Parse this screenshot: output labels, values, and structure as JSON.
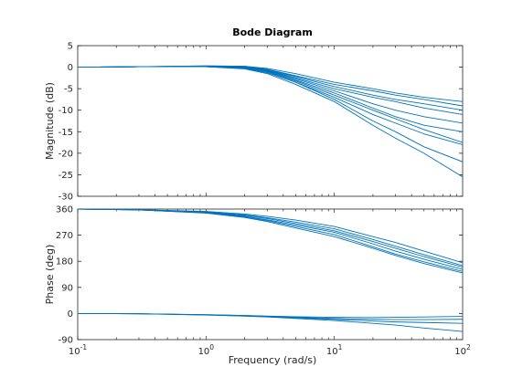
{
  "chart_data": {
    "type": "line",
    "title": "Bode Diagram",
    "xlabel": "Frequency  (rad/s)",
    "xscale": "log",
    "xlim": [
      0.1,
      100
    ],
    "x_ticks": [
      {
        "value": 0.1,
        "base": "10",
        "exp": "-1"
      },
      {
        "value": 1,
        "base": "10",
        "exp": "0"
      },
      {
        "value": 10,
        "base": "10",
        "exp": "1"
      },
      {
        "value": 100,
        "base": "10",
        "exp": "2"
      }
    ],
    "line_color": "#0072BD",
    "grid": false,
    "legend": "none",
    "panels": [
      {
        "name": "magnitude",
        "ylabel": "Magnitude (dB)",
        "ylim": [
          -30,
          5
        ],
        "y_ticks": [
          5,
          0,
          -5,
          -10,
          -15,
          -20,
          -25,
          -30
        ],
        "y_tick_labels": [
          "5",
          "0",
          "-5",
          "-10",
          "-15",
          "-20",
          "-25",
          "-30"
        ],
        "x": [
          0.1,
          0.3,
          1,
          2,
          3,
          5,
          10,
          20,
          30,
          50,
          100
        ],
        "series": [
          {
            "values": [
              0,
              0.1,
              0.3,
              0.2,
              -0.3,
              -1.5,
              -3.5,
              -5,
              -6,
              -7,
              -8
            ]
          },
          {
            "values": [
              0,
              0.1,
              0.3,
              0.2,
              -0.5,
              -2,
              -4,
              -5.5,
              -6.5,
              -7.5,
              -9
            ]
          },
          {
            "values": [
              0,
              0.1,
              0.2,
              0.1,
              -0.6,
              -2.2,
              -4.5,
              -6.5,
              -7.5,
              -8.5,
              -10
            ]
          },
          {
            "values": [
              0,
              0.1,
              0.2,
              0.1,
              -0.7,
              -2.5,
              -5,
              -7,
              -8,
              -9.5,
              -11
            ]
          },
          {
            "values": [
              0,
              0.1,
              0.2,
              0,
              -0.8,
              -2.7,
              -5.5,
              -8.5,
              -10,
              -11.5,
              -13
            ]
          },
          {
            "values": [
              0,
              0.1,
              0.2,
              0,
              -0.9,
              -3,
              -6,
              -9.5,
              -11.5,
              -13.5,
              -15
            ]
          },
          {
            "values": [
              0,
              0.1,
              0.1,
              -0.1,
              -1,
              -3.2,
              -6.5,
              -10,
              -12,
              -14.5,
              -17.5
            ]
          },
          {
            "values": [
              0,
              0.1,
              0.1,
              -0.2,
              -1.2,
              -3.5,
              -7,
              -11,
              -13,
              -15.5,
              -18
            ]
          },
          {
            "values": [
              0,
              0.1,
              0.1,
              -0.3,
              -1.3,
              -3.5,
              -7.5,
              -12.5,
              -15,
              -18.5,
              -22
            ]
          },
          {
            "values": [
              0,
              0.1,
              0.1,
              -0.4,
              -1.5,
              -4,
              -8,
              -13.5,
              -16.5,
              -20,
              -25.5
            ]
          }
        ]
      },
      {
        "name": "phase",
        "ylabel": "Phase (deg)",
        "ylim": [
          -90,
          360
        ],
        "y_ticks": [
          360,
          270,
          180,
          90,
          0,
          -90
        ],
        "y_tick_labels": [
          "360",
          "270",
          "180",
          "90",
          "0",
          "-90"
        ],
        "x": [
          0.1,
          0.3,
          1,
          2,
          3,
          5,
          10,
          20,
          30,
          50,
          100
        ],
        "series": [
          {
            "values": [
              360,
              358,
              352,
              343,
              335,
              322,
              300,
              265,
              245,
              215,
              175
            ]
          },
          {
            "values": [
              360,
              358,
              350,
              340,
              330,
              315,
              292,
              255,
              232,
              203,
              165
            ]
          },
          {
            "values": [
              360,
              357,
              349,
              338,
              327,
              310,
              285,
              248,
              225,
              196,
              160
            ]
          },
          {
            "values": [
              360,
              357,
              348,
              335,
              323,
              305,
              280,
              240,
              215,
              187,
              152
            ]
          },
          {
            "values": [
              360,
              357,
              347,
              333,
              320,
              300,
              272,
              230,
              205,
              178,
              145
            ]
          },
          {
            "values": [
              360,
              357,
              346,
              331,
              317,
              295,
              265,
              225,
              200,
              172,
              140
            ]
          },
          {
            "values": [
              0,
              -1,
              -4,
              -7,
              -9,
              -11,
              -13,
              -14,
              -13,
              -12,
              -10
            ]
          },
          {
            "values": [
              0,
              -1,
              -4,
              -7,
              -10,
              -13,
              -17,
              -20,
              -21,
              -21,
              -20
            ]
          },
          {
            "values": [
              0,
              -1,
              -5,
              -8,
              -11,
              -15,
              -20,
              -26,
              -29,
              -31,
              -34
            ]
          },
          {
            "values": [
              0,
              -1,
              -5,
              -9,
              -12,
              -17,
              -24,
              -34,
              -40,
              -50,
              -62
            ]
          }
        ]
      }
    ]
  }
}
